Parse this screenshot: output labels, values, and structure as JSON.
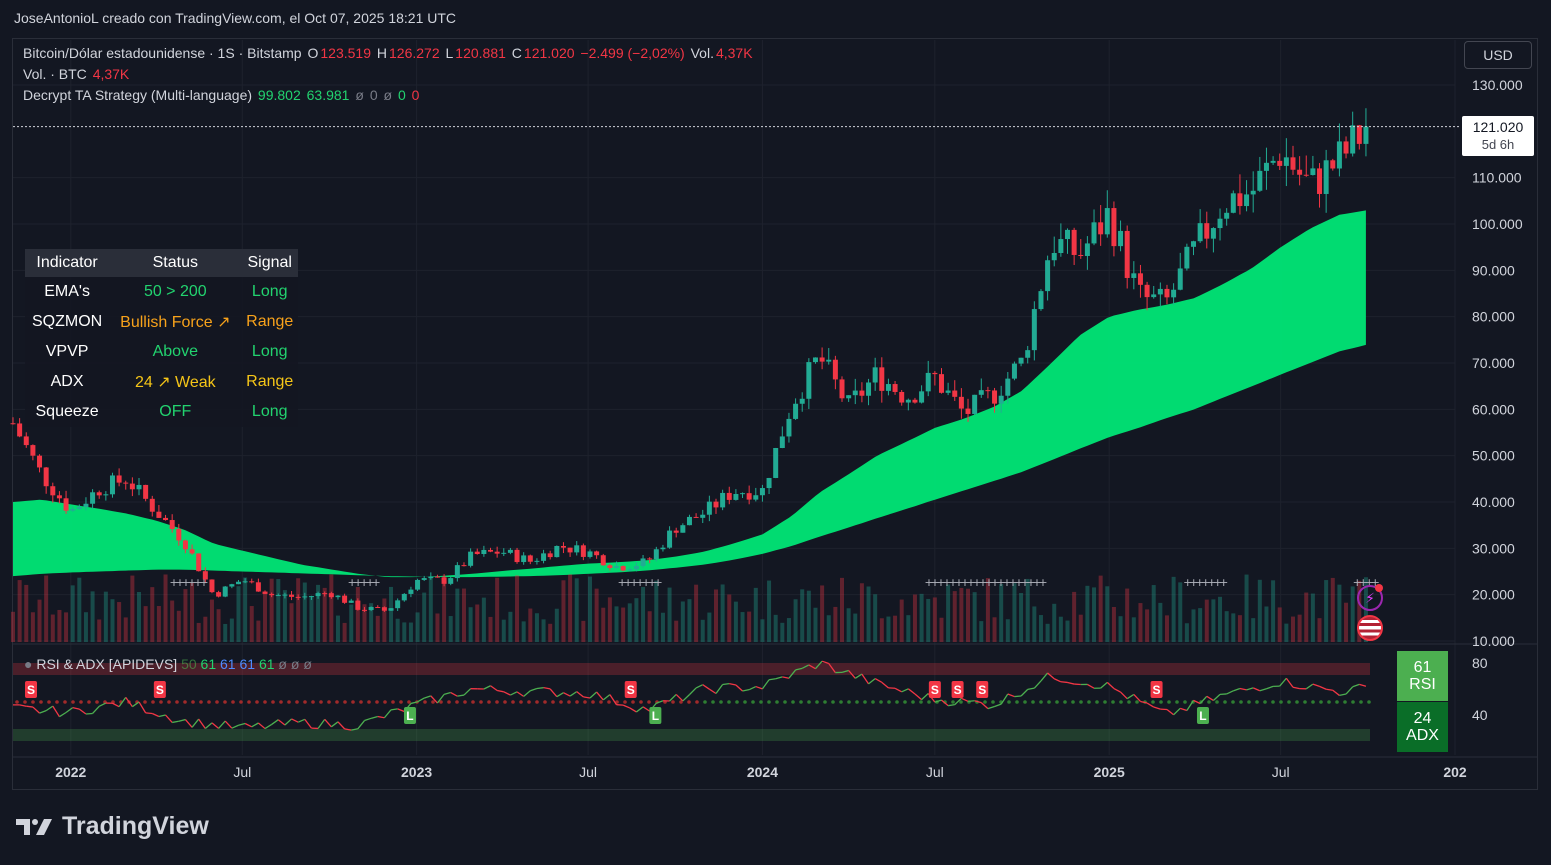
{
  "header": {
    "attribution": "JoseAntonioL creado con TradingView.com, el Oct 07, 2025 18:21 UTC"
  },
  "legend": {
    "symbol": "Bitcoin/Dólar estadounidense · 1S · Bitstamp",
    "o_label": "O",
    "o_value": "123.519",
    "h_label": "H",
    "h_value": "126.272",
    "l_label": "L",
    "l_value": "120.881",
    "c_label": "C",
    "c_value": "121.020",
    "change": "−2.499 (−2,02%)",
    "vol_label": "Vol.",
    "vol_value": "4,37K",
    "vol_btc_label": "Vol. · BTC",
    "vol_btc_value": "4,37K",
    "strategy_label": "Decrypt TA Strategy (Multi-language)",
    "strategy_v1": "99.802",
    "strategy_v2": "63.981",
    "strategy_v3": "ø",
    "strategy_v4": "0",
    "strategy_v5": "ø",
    "strategy_v6": "0",
    "strategy_v7": "0"
  },
  "currency_button": "USD",
  "price_tag": {
    "price": "121.020",
    "countdown": "5d 6h"
  },
  "indicator_table": {
    "headers": [
      "Indicator",
      "Status",
      "Signal"
    ],
    "rows": [
      {
        "indicator": "EMA's",
        "status": "50 > 200",
        "signal": "Long",
        "status_color": "#22d36f",
        "signal_color": "#22d36f"
      },
      {
        "indicator": "SQZMON",
        "status": "Bullish Force ↗",
        "signal": "Range",
        "status_color": "#f7a21b",
        "signal_color": "#f7a21b"
      },
      {
        "indicator": "VPVP",
        "status": "Above",
        "signal": "Long",
        "status_color": "#22d36f",
        "signal_color": "#22d36f"
      },
      {
        "indicator": "ADX",
        "status": "24 ↗ Weak",
        "signal": "Range",
        "status_color": "#f5c518",
        "signal_color": "#f5c518"
      },
      {
        "indicator": "Squeeze",
        "status": "OFF",
        "signal": "Long",
        "status_color": "#22d36f",
        "signal_color": "#22d36f"
      }
    ]
  },
  "rsi_panel": {
    "label": "RSI & ADX [APIDEVS]",
    "values": [
      "50",
      "61",
      "61",
      "61",
      "61",
      "ø",
      "ø",
      "ø"
    ],
    "rsi_value": "61",
    "rsi_label": "RSI",
    "adx_value": "24",
    "adx_label": "ADX",
    "y_ticks": [
      "80",
      "40"
    ],
    "signal_S": "S",
    "signal_L": "L"
  },
  "footer": {
    "brand": "TradingView"
  },
  "colors": {
    "background": "#131722",
    "up": "#22ab94",
    "down": "#f23645",
    "cloud": "#00e676",
    "rsi_line_up": "#4caf50",
    "rsi_line_down": "#f23645"
  },
  "chart_data": {
    "type": "candlestick",
    "interval": "1W",
    "y_axis_ticks": [
      "130.000",
      "110.000",
      "100.000",
      "90.000",
      "80.000",
      "70.000",
      "60.000",
      "50.000",
      "40.000",
      "30.000",
      "20.000",
      "10.000"
    ],
    "y_axis_tick_values": [
      130000,
      110000,
      100000,
      90000,
      80000,
      70000,
      60000,
      50000,
      40000,
      30000,
      20000,
      10000
    ],
    "ylim": [
      10000,
      130000
    ],
    "x_axis_ticks": [
      "2022",
      "Jul",
      "2023",
      "Jul",
      "2024",
      "Jul",
      "2025",
      "Jul",
      "202"
    ],
    "x_axis_tick_values": [
      "2022-01-01",
      "2022-07-01",
      "2023-01-01",
      "2023-07-01",
      "2024-01-01",
      "2024-07-01",
      "2025-01-01",
      "2025-07-01",
      "2026-01-01"
    ],
    "xlim": [
      "2021-11-01",
      "2026-01-01"
    ],
    "last_price": 121020,
    "close_series_x": [
      "2021-11-01",
      "2021-12-01",
      "2022-01-01",
      "2022-02-01",
      "2022-03-01",
      "2022-04-01",
      "2022-05-01",
      "2022-06-01",
      "2022-07-01",
      "2022-08-01",
      "2022-09-01",
      "2022-10-01",
      "2022-11-01",
      "2022-12-01",
      "2023-01-01",
      "2023-02-01",
      "2023-03-01",
      "2023-04-01",
      "2023-05-01",
      "2023-06-01",
      "2023-07-01",
      "2023-08-01",
      "2023-09-01",
      "2023-10-01",
      "2023-11-01",
      "2023-12-01",
      "2024-01-01",
      "2024-02-01",
      "2024-03-01",
      "2024-04-01",
      "2024-05-01",
      "2024-06-01",
      "2024-07-01",
      "2024-08-01",
      "2024-09-01",
      "2024-10-01",
      "2024-11-01",
      "2024-12-01",
      "2025-01-01",
      "2025-02-01",
      "2025-03-01",
      "2025-04-01",
      "2025-05-01",
      "2025-06-01",
      "2025-07-01",
      "2025-08-01",
      "2025-09-01",
      "2025-10-01"
    ],
    "close_series_y": [
      57000,
      46000,
      38000,
      43000,
      45000,
      38000,
      31500,
      19800,
      23300,
      20000,
      19400,
      20500,
      17100,
      16500,
      23100,
      23100,
      28500,
      29300,
      27200,
      30500,
      29200,
      26000,
      27000,
      34500,
      37700,
      42300,
      42500,
      61200,
      71300,
      60600,
      67500,
      62700,
      66800,
      59000,
      63300,
      70300,
      96400,
      93400,
      102400,
      84300,
      82500,
      94200,
      104600,
      107100,
      115700,
      108200,
      114000,
      121020
    ],
    "ema50_series_y": [
      40000,
      40500,
      39500,
      38500,
      37500,
      36000,
      34000,
      31000,
      29500,
      28000,
      26500,
      25500,
      24500,
      23800,
      23800,
      24100,
      24500,
      25100,
      25600,
      26200,
      26700,
      27000,
      27400,
      28200,
      29300,
      31000,
      33000,
      37000,
      42000,
      46000,
      50000,
      53000,
      56000,
      58000,
      60500,
      64000,
      70000,
      76000,
      80000,
      81500,
      82500,
      84000,
      87000,
      90500,
      95000,
      99000,
      102000,
      103000
    ],
    "ema200_series_y": [
      24000,
      24500,
      24800,
      25000,
      25200,
      25400,
      25400,
      25200,
      25000,
      24800,
      24600,
      24400,
      24200,
      24000,
      23900,
      23800,
      23800,
      23900,
      24000,
      24200,
      24500,
      24800,
      25200,
      25800,
      26500,
      27500,
      28800,
      30500,
      32500,
      34500,
      36500,
      38500,
      40500,
      42500,
      44500,
      46500,
      49000,
      51500,
      54000,
      56000,
      58000,
      60000,
      62500,
      65000,
      67500,
      70000,
      72500,
      74000
    ],
    "rsi_series_x": [
      "2021-11-01",
      "2022-01-01",
      "2022-03-01",
      "2022-05-01",
      "2022-07-01",
      "2022-09-01",
      "2022-11-01",
      "2023-01-01",
      "2023-03-01",
      "2023-05-01",
      "2023-07-01",
      "2023-09-01",
      "2023-11-01",
      "2024-01-01",
      "2024-03-01",
      "2024-05-01",
      "2024-07-01",
      "2024-09-01",
      "2024-11-01",
      "2025-01-01",
      "2025-03-01",
      "2025-05-01",
      "2025-07-01",
      "2025-09-01",
      "2025-10-01"
    ],
    "rsi_series_y": [
      45,
      42,
      50,
      35,
      30,
      34,
      32,
      48,
      60,
      58,
      57,
      44,
      60,
      62,
      80,
      64,
      52,
      48,
      70,
      62,
      40,
      55,
      66,
      58,
      61
    ]
  }
}
